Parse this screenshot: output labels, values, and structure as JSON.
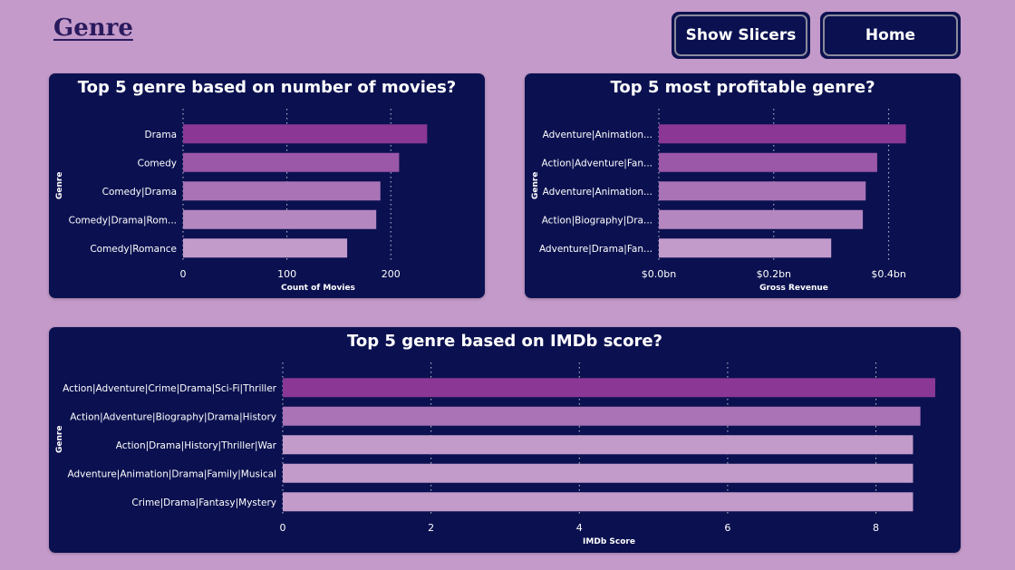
{
  "page": {
    "title": "Genre"
  },
  "nav": {
    "show_slicers_label": "Show Slicers",
    "home_label": "Home"
  },
  "colors": {
    "background": "#c39ac9",
    "card": "#0b1150",
    "bar_1": "#8a3795",
    "bar_2": "#9b57a8",
    "bar_3": "#a973b6",
    "bar_4": "#b587c0",
    "bar_5": "#c29bcb"
  },
  "chart_data": [
    {
      "type": "bar",
      "orientation": "horizontal",
      "title": "Top 5 genre based on number of movies?",
      "xlabel": "Count of Movies",
      "ylabel": "Genre",
      "categories": [
        "Drama",
        "Comedy",
        "Comedy|Drama",
        "Comedy|Drama|Rom...",
        "Comedy|Romance"
      ],
      "values": [
        235,
        208,
        190,
        186,
        158
      ],
      "xlim": [
        0,
        260
      ],
      "ticks": [
        0,
        100,
        200
      ],
      "tick_labels": [
        "0",
        "100",
        "200"
      ],
      "grid": true
    },
    {
      "type": "bar",
      "orientation": "horizontal",
      "title": "Top 5 most profitable genre?",
      "xlabel": "Gross Revenue",
      "ylabel": "Genre",
      "categories": [
        "Adventure|Animation...",
        "Action|Adventure|Fan...",
        "Adventure|Animation...",
        "Action|Biography|Dra...",
        "Adventure|Drama|Fan..."
      ],
      "values": [
        0.43,
        0.38,
        0.36,
        0.355,
        0.3
      ],
      "xlim": [
        0,
        0.47
      ],
      "ticks": [
        0,
        0.2,
        0.4
      ],
      "tick_labels": [
        "$0.0bn",
        "$0.2bn",
        "$0.4bn"
      ],
      "grid": true
    },
    {
      "type": "bar",
      "orientation": "horizontal",
      "title": "Top 5 genre based on IMDb score?",
      "xlabel": "IMDb Score",
      "ylabel": "Genre",
      "categories": [
        "Action|Adventure|Crime|Drama|Sci-Fi|Thriller",
        "Action|Adventure|Biography|Drama|History",
        "Action|Drama|History|Thriller|War",
        "Adventure|Animation|Drama|Family|Musical",
        "Crime|Drama|Fantasy|Mystery"
      ],
      "values": [
        8.8,
        8.6,
        8.5,
        8.5,
        8.5
      ],
      "xlim": [
        0,
        8.8
      ],
      "ticks": [
        0,
        2,
        4,
        6,
        8
      ],
      "tick_labels": [
        "0",
        "2",
        "4",
        "6",
        "8"
      ],
      "grid": true
    }
  ]
}
